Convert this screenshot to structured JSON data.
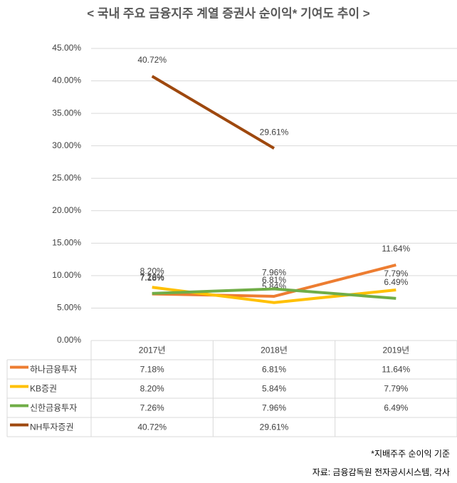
{
  "chart_data": {
    "type": "line",
    "title": "< 국내 주요 금융지주 계열 증권사 순이익* 기여도 추이 >",
    "categories": [
      "2017년",
      "2018년",
      "2019년"
    ],
    "series": [
      {
        "name": "하나금융투자",
        "color": "#ed7d31",
        "values": [
          7.18,
          6.81,
          11.64
        ],
        "value_labels": [
          "7.18%",
          "6.81%",
          "11.64%"
        ]
      },
      {
        "name": "KB증권",
        "color": "#ffc000",
        "values": [
          8.2,
          5.84,
          7.79
        ],
        "value_labels": [
          "8.20%",
          "5.84%",
          "7.79%"
        ]
      },
      {
        "name": "신한금융투자",
        "color": "#70ad47",
        "values": [
          7.26,
          7.96,
          6.49
        ],
        "value_labels": [
          "7.26%",
          "7.96%",
          "6.49%"
        ]
      },
      {
        "name": "NH투자증권",
        "color": "#9e480e",
        "values": [
          40.72,
          29.61,
          null
        ],
        "value_labels": [
          "40.72%",
          "29.61%",
          null
        ]
      }
    ],
    "ylim": [
      0,
      45
    ],
    "yticks": [
      {
        "value": 0,
        "label": "0.00%"
      },
      {
        "value": 5,
        "label": "5.00%"
      },
      {
        "value": 10,
        "label": "10.00%"
      },
      {
        "value": 15,
        "label": "15.00%"
      },
      {
        "value": 20,
        "label": "20.00%"
      },
      {
        "value": 25,
        "label": "25.00%"
      },
      {
        "value": 30,
        "label": "30.00%"
      },
      {
        "value": 35,
        "label": "35.00%"
      },
      {
        "value": 40,
        "label": "40.00%"
      },
      {
        "value": 45,
        "label": "45.00%"
      }
    ],
    "grid": true,
    "notes": [
      "*지배주주 순이익 기준",
      "자료: 금융감독원 전자공시시스템, 각사"
    ]
  }
}
